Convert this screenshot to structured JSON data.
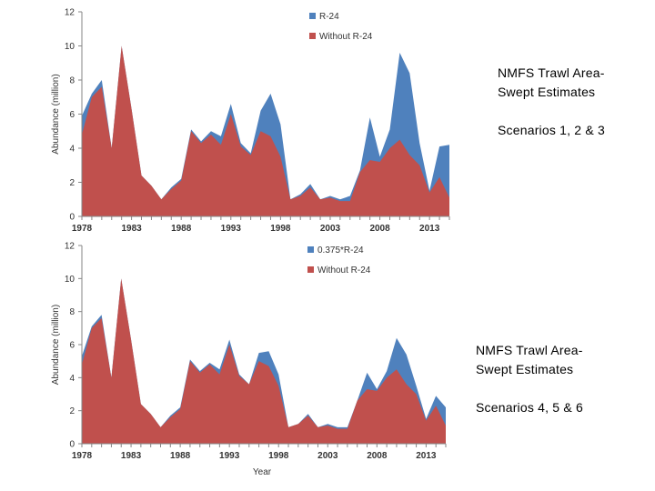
{
  "annotations": [
    {
      "line1": "NMFS Trawl Area-",
      "line2": "Swept Estimates",
      "line3": "Scenarios 1, 2 & 3"
    },
    {
      "line1": "NMFS Trawl Area-",
      "line2": "Swept Estimates",
      "line3": "Scenarios 4, 5 & 6"
    }
  ],
  "colors": {
    "red": "#c0504d",
    "blue": "#4f81bd",
    "axis": "#868686"
  },
  "chart_data": [
    {
      "type": "area",
      "stacked": false,
      "title": "",
      "xlabel": "",
      "ylabel": "Abundance (million)",
      "ylim": [
        0,
        12
      ],
      "yticks": [
        0,
        2,
        4,
        6,
        8,
        10,
        12
      ],
      "xlim": [
        1978,
        2015
      ],
      "xticks": [
        1978,
        1983,
        1988,
        1993,
        1998,
        2003,
        2008,
        2013
      ],
      "legend_position": "top-center",
      "x": [
        1978,
        1979,
        1980,
        1981,
        1982,
        1983,
        1984,
        1985,
        1986,
        1987,
        1988,
        1989,
        1990,
        1991,
        1992,
        1993,
        1994,
        1995,
        1996,
        1997,
        1998,
        1999,
        2000,
        2001,
        2002,
        2003,
        2004,
        2005,
        2006,
        2007,
        2008,
        2009,
        2010,
        2011,
        2012,
        2013,
        2014,
        2015
      ],
      "series": [
        {
          "name": "R-24",
          "color": "#4f81bd",
          "values": [
            5.9,
            7.2,
            8.0,
            4.0,
            10.0,
            6.3,
            2.4,
            1.8,
            1.0,
            1.7,
            2.2,
            5.1,
            4.4,
            5.0,
            4.7,
            6.6,
            4.3,
            3.7,
            6.2,
            7.2,
            5.4,
            1.0,
            1.3,
            1.9,
            1.0,
            1.2,
            1.0,
            1.2,
            2.7,
            5.8,
            3.5,
            5.1,
            9.6,
            8.4,
            4.3,
            1.5,
            4.1,
            4.2
          ]
        },
        {
          "name": "Without R-24",
          "color": "#c0504d",
          "values": [
            4.8,
            7.0,
            7.6,
            4.0,
            10.0,
            6.3,
            2.4,
            1.8,
            1.0,
            1.6,
            2.1,
            5.0,
            4.3,
            4.8,
            4.2,
            6.0,
            4.1,
            3.6,
            5.0,
            4.7,
            3.5,
            1.0,
            1.2,
            1.7,
            1.0,
            1.1,
            0.9,
            0.9,
            2.6,
            3.3,
            3.2,
            4.0,
            4.5,
            3.6,
            3.0,
            1.4,
            2.3,
            1.1
          ]
        }
      ]
    },
    {
      "type": "area",
      "stacked": false,
      "title": "",
      "xlabel": "Year",
      "ylabel": "Abundance (million)",
      "ylim": [
        0,
        12
      ],
      "yticks": [
        0,
        2,
        4,
        6,
        8,
        10,
        12
      ],
      "xlim": [
        1978,
        2015
      ],
      "xticks": [
        1978,
        1983,
        1988,
        1993,
        1998,
        2003,
        2008,
        2013
      ],
      "legend_position": "top-center",
      "x": [
        1978,
        1979,
        1980,
        1981,
        1982,
        1983,
        1984,
        1985,
        1986,
        1987,
        1988,
        1989,
        1990,
        1991,
        1992,
        1993,
        1994,
        1995,
        1996,
        1997,
        1998,
        1999,
        2000,
        2001,
        2002,
        2003,
        2004,
        2005,
        2006,
        2007,
        2008,
        2009,
        2010,
        2011,
        2012,
        2013,
        2014,
        2015
      ],
      "series": [
        {
          "name": "0.375*R-24",
          "color": "#4f81bd",
          "values": [
            5.3,
            7.1,
            7.8,
            4.0,
            10.0,
            6.3,
            2.4,
            1.8,
            1.0,
            1.7,
            2.2,
            5.1,
            4.4,
            4.9,
            4.5,
            6.3,
            4.2,
            3.6,
            5.5,
            5.6,
            4.2,
            1.0,
            1.2,
            1.8,
            1.0,
            1.2,
            1.0,
            1.0,
            2.6,
            4.3,
            3.3,
            4.4,
            6.4,
            5.4,
            3.5,
            1.5,
            2.9,
            2.2
          ]
        },
        {
          "name": "Without R-24",
          "color": "#c0504d",
          "values": [
            4.8,
            7.0,
            7.6,
            4.0,
            10.0,
            6.3,
            2.4,
            1.8,
            1.0,
            1.6,
            2.1,
            5.0,
            4.3,
            4.8,
            4.2,
            6.0,
            4.1,
            3.6,
            5.0,
            4.7,
            3.5,
            1.0,
            1.2,
            1.7,
            1.0,
            1.1,
            0.9,
            0.9,
            2.6,
            3.3,
            3.2,
            4.0,
            4.5,
            3.6,
            3.0,
            1.4,
            2.3,
            1.1
          ]
        }
      ]
    }
  ]
}
